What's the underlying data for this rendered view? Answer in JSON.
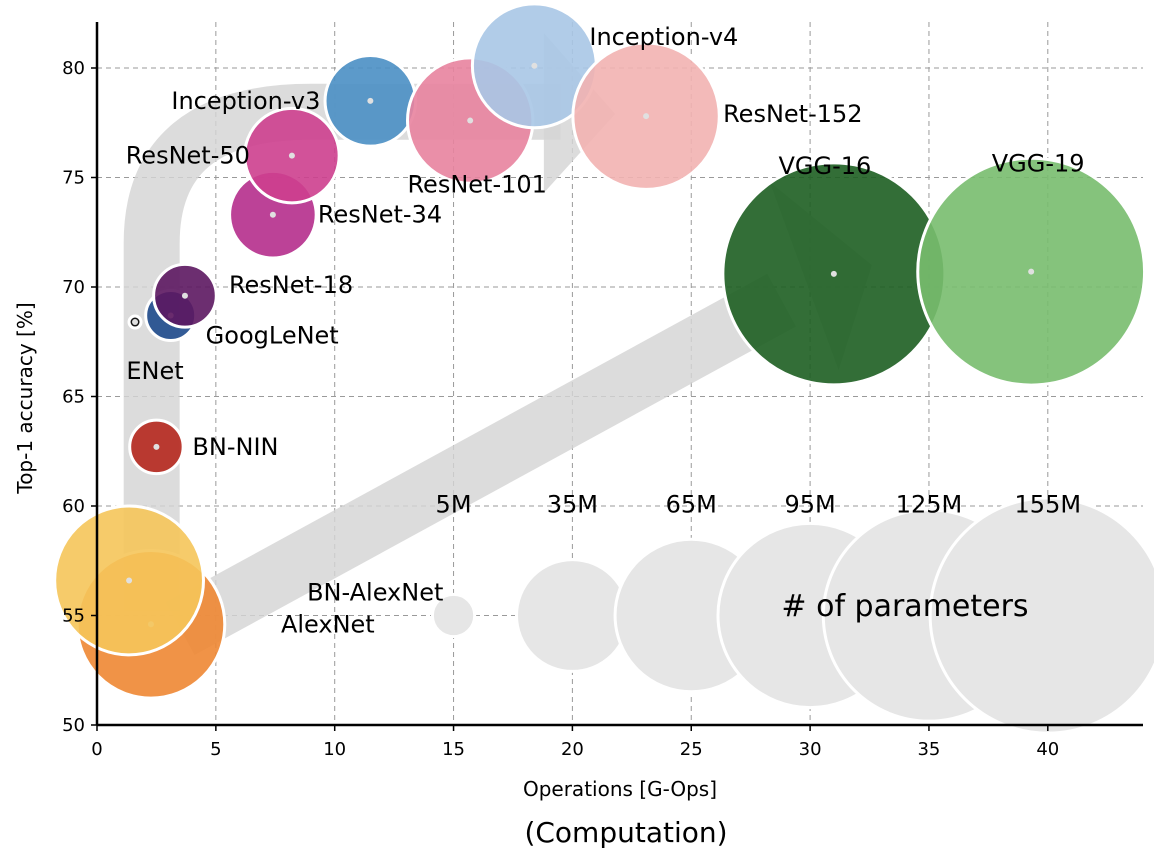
{
  "chart_data": {
    "type": "scatter",
    "subtype": "bubble",
    "xlabel": "Operations [G-Ops]",
    "ylabel": "Top-1 accuracy [%]",
    "caption": "(Computation)",
    "xlim": [
      0,
      44
    ],
    "ylim": [
      50,
      82
    ],
    "xticks": [
      "0",
      "5",
      "10",
      "15",
      "20",
      "25",
      "30",
      "35",
      "40"
    ],
    "yticks": [
      "50",
      "55",
      "60",
      "65",
      "70",
      "75",
      "80"
    ],
    "grid": true,
    "points": [
      {
        "label": "AlexNet",
        "x": 2.27,
        "y": 54.6,
        "params_m": 61,
        "color": "#ee8733"
      },
      {
        "label": "BN-AlexNet",
        "x": 1.35,
        "y": 56.6,
        "params_m": 62,
        "color": "#f5c55a"
      },
      {
        "label": "BN-NIN",
        "x": 2.5,
        "y": 62.7,
        "params_m": 8,
        "color": "#b5271d"
      },
      {
        "label": "ENet",
        "x": 1.6,
        "y": 68.4,
        "params_m": 0.4,
        "color": "#000000"
      },
      {
        "label": "GoogLeNet",
        "x": 3.1,
        "y": 68.7,
        "params_m": 7,
        "color": "#1e4a8c"
      },
      {
        "label": "ResNet-18",
        "x": 3.7,
        "y": 69.6,
        "params_m": 11,
        "color": "#5c1760"
      },
      {
        "label": "ResNet-34",
        "x": 7.4,
        "y": 73.3,
        "params_m": 21,
        "color": "#b52d8c"
      },
      {
        "label": "ResNet-50",
        "x": 8.2,
        "y": 76.0,
        "params_m": 25,
        "color": "#cd3f8e"
      },
      {
        "label": "Inception-v3",
        "x": 11.5,
        "y": 78.5,
        "params_m": 23,
        "color": "#4a8fc4"
      },
      {
        "label": "ResNet-101",
        "x": 15.7,
        "y": 77.6,
        "params_m": 44,
        "color": "#e8839e"
      },
      {
        "label": "Inception-v4",
        "x": 18.4,
        "y": 80.1,
        "params_m": 43,
        "color": "#a8c6e5"
      },
      {
        "label": "ResNet-152",
        "x": 23.1,
        "y": 77.8,
        "params_m": 60,
        "color": "#f2b3b1"
      },
      {
        "label": "VGG-16",
        "x": 31.0,
        "y": 70.6,
        "params_m": 138,
        "color": "#1d5e21"
      },
      {
        "label": "VGG-19",
        "x": 39.3,
        "y": 70.7,
        "params_m": 144,
        "color": "#78bd6e"
      }
    ],
    "size_legend": {
      "title": "# of parameters",
      "color": "#e6e6e6",
      "y": 55,
      "items": [
        {
          "label": "5M",
          "x": 15,
          "params_m": 5
        },
        {
          "label": "35M",
          "x": 20,
          "params_m": 35
        },
        {
          "label": "65M",
          "x": 25,
          "params_m": 65
        },
        {
          "label": "95M",
          "x": 30,
          "params_m": 95
        },
        {
          "label": "125M",
          "x": 35,
          "params_m": 125
        },
        {
          "label": "155M",
          "x": 40,
          "params_m": 155
        }
      ]
    }
  }
}
